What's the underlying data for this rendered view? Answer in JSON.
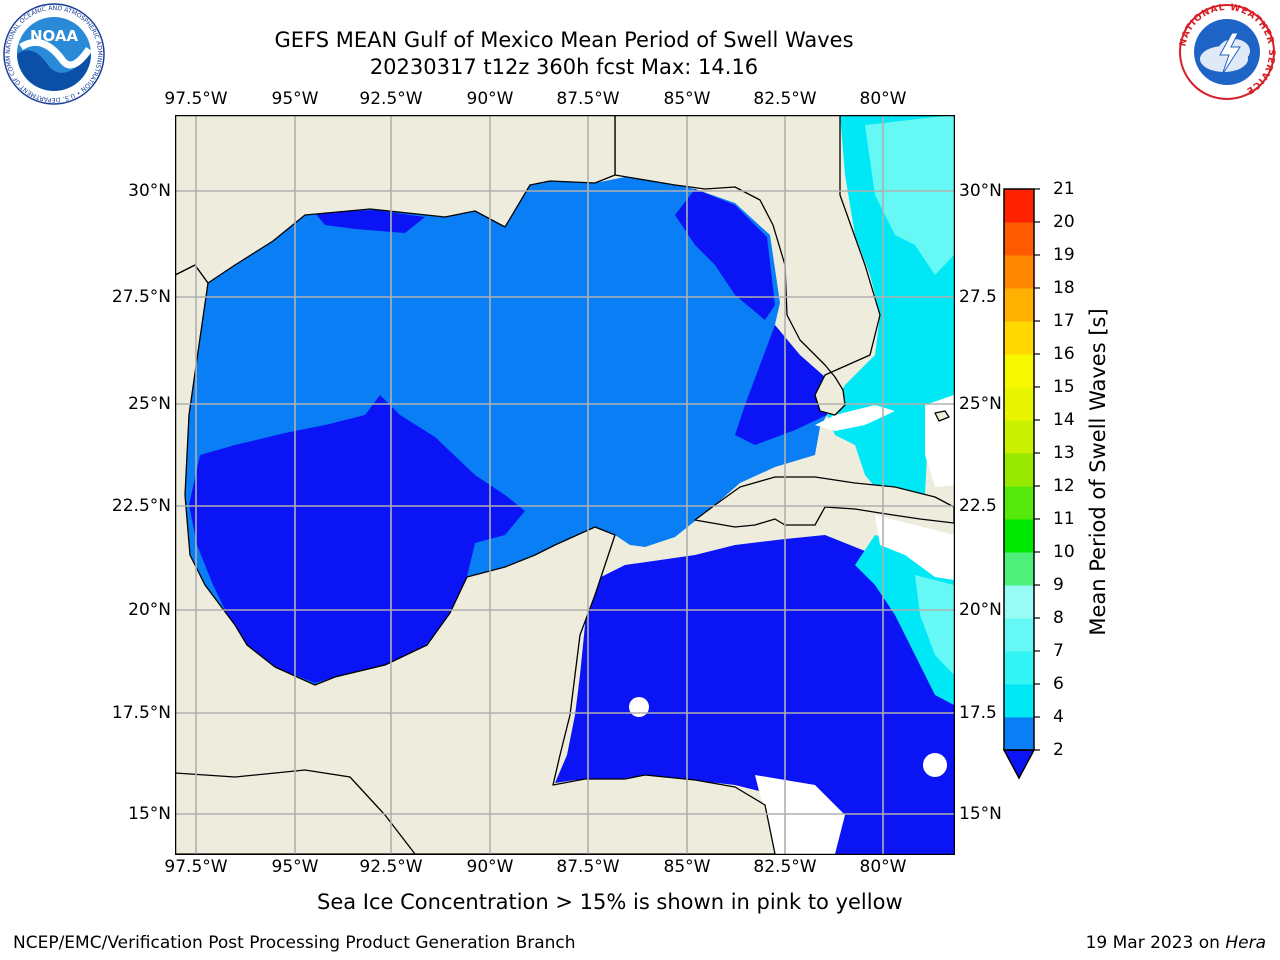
{
  "header": {
    "title_line1": "GEFS MEAN Gulf of Mexico Mean Period of Swell Waves",
    "title_line2": "20230317 t12z 360h fcst   Max: 14.16"
  },
  "map": {
    "lon_labels": [
      "97.5°W",
      "95°W",
      "92.5°W",
      "90°W",
      "87.5°W",
      "85°W",
      "82.5°W",
      "80°W"
    ],
    "lat_labels_left": [
      "30°N",
      "27.5°N",
      "25°N",
      "22.5°N",
      "20°N",
      "17.5°N",
      "15°N"
    ],
    "lat_labels_right": [
      "30°N",
      "27.5",
      "25°N",
      "22.5",
      "20°N",
      "17.5",
      "15°N"
    ],
    "extent": {
      "lon_min": -98.0,
      "lon_max": -78.3,
      "lat_min": 14.0,
      "lat_max": 31.8
    },
    "colors": {
      "land": "#eeecdc",
      "coast": "#000000",
      "grid": "#b0b0b0",
      "missing": "#ffffff"
    }
  },
  "colorbar": {
    "label": "Mean Period of Swell Waves [s]",
    "ticks": [
      "2",
      "4",
      "6",
      "7",
      "8",
      "9",
      "10",
      "11",
      "12",
      "13",
      "14",
      "15",
      "16",
      "17",
      "18",
      "19",
      "20",
      "21"
    ],
    "colors": [
      "#0a7ef5",
      "#00e8f5",
      "#33f5f5",
      "#66f8f5",
      "#99fbf5",
      "#4ff07a",
      "#00e800",
      "#55e80a",
      "#99e800",
      "#c8f000",
      "#e8f500",
      "#f7f700",
      "#ffd800",
      "#ffb000",
      "#ff8800",
      "#ff5a00",
      "#ff2200"
    ],
    "extend_low_color": "#0a14f5"
  },
  "footer": {
    "note": "Sea Ice Concentration > 15% is shown in pink to yellow",
    "left": "NCEP/EMC/Verification Post Processing Product Generation Branch",
    "right_date": "19 Mar 2023 on ",
    "right_host": "Hera"
  },
  "logos": {
    "noaa_text": "NOAA",
    "noaa_ring": "NATIONAL OCEANIC AND ATMOSPHERIC ADMINISTRATION • U.S. DEPARTMENT OF COMMERCE •",
    "nws_ring": "NATIONAL WEATHER SERVICE"
  }
}
